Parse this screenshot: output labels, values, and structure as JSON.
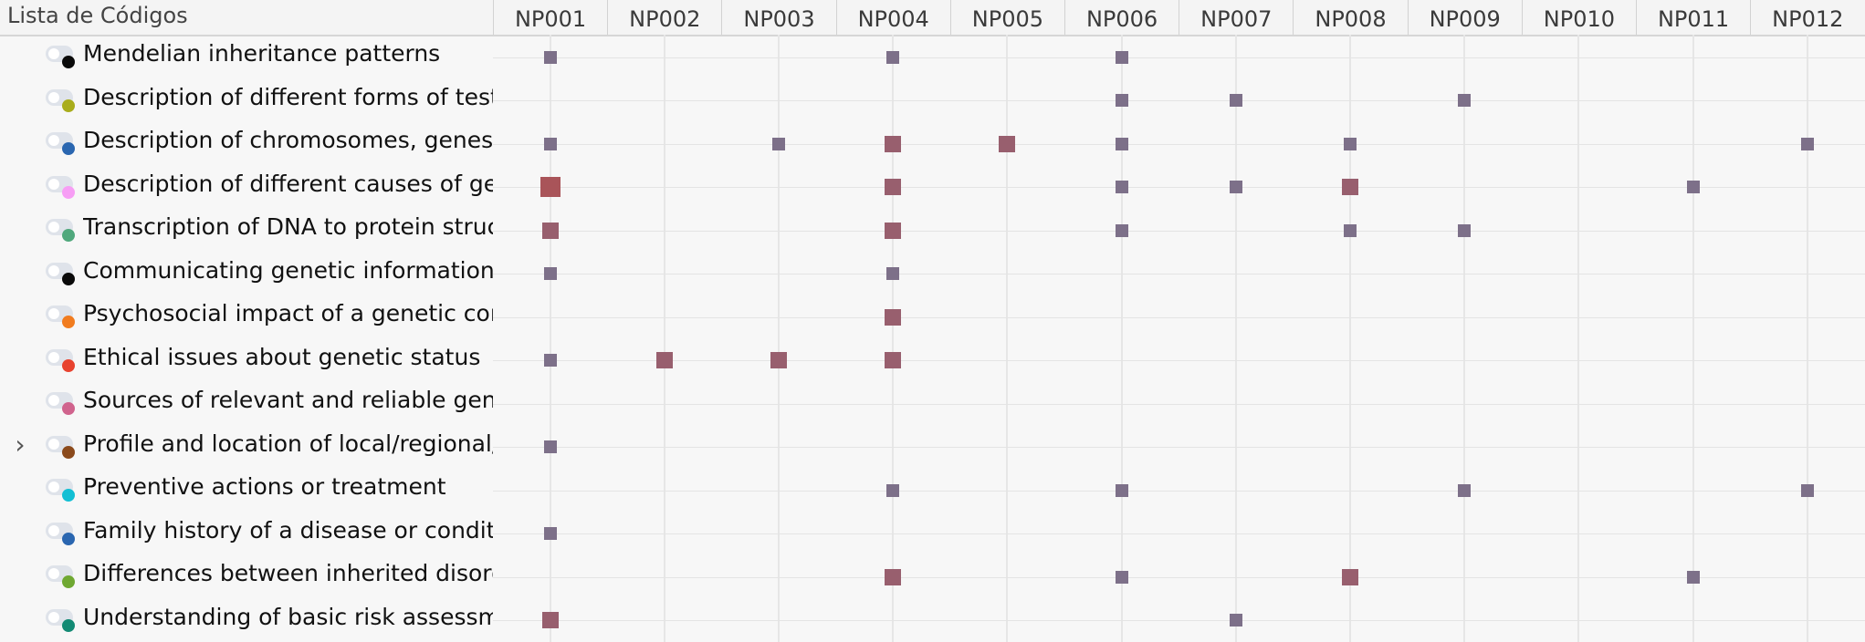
{
  "header": {
    "title": "Lista de Códigos",
    "columns": [
      "NP001",
      "NP002",
      "NP003",
      "NP004",
      "NP005",
      "NP006",
      "NP007",
      "NP008",
      "NP009",
      "NP010",
      "NP011",
      "NP012"
    ]
  },
  "rows": [
    {
      "label": "Mendelian inheritance patterns",
      "color": "#0a0a0a",
      "expandable": false,
      "markers": [
        {
          "col": 0,
          "size": "small"
        },
        {
          "col": 3,
          "size": "small"
        },
        {
          "col": 5,
          "size": "small"
        }
      ]
    },
    {
      "label": "Description of different forms of testing",
      "color": "#a9ad1c",
      "expandable": false,
      "markers": [
        {
          "col": 5,
          "size": "small"
        },
        {
          "col": 6,
          "size": "small"
        },
        {
          "col": 8,
          "size": "small"
        }
      ]
    },
    {
      "label": "Description of chromosomes, genes and",
      "color": "#2a66b0",
      "expandable": false,
      "markers": [
        {
          "col": 0,
          "size": "small"
        },
        {
          "col": 2,
          "size": "small"
        },
        {
          "col": 3,
          "size": "medium"
        },
        {
          "col": 4,
          "size": "medium"
        },
        {
          "col": 5,
          "size": "small"
        },
        {
          "col": 7,
          "size": "small"
        },
        {
          "col": 11,
          "size": "small"
        }
      ]
    },
    {
      "label": "Description of different causes of genet",
      "color": "#f79ef5",
      "expandable": false,
      "markers": [
        {
          "col": 0,
          "size": "large"
        },
        {
          "col": 3,
          "size": "medium"
        },
        {
          "col": 5,
          "size": "small"
        },
        {
          "col": 6,
          "size": "small"
        },
        {
          "col": 7,
          "size": "medium"
        },
        {
          "col": 10,
          "size": "small"
        }
      ]
    },
    {
      "label": "Transcription of DNA to protein structur",
      "color": "#4fa87c",
      "expandable": false,
      "markers": [
        {
          "col": 0,
          "size": "medium"
        },
        {
          "col": 3,
          "size": "medium"
        },
        {
          "col": 5,
          "size": "small"
        },
        {
          "col": 7,
          "size": "small"
        },
        {
          "col": 8,
          "size": "small"
        }
      ]
    },
    {
      "label": "Communicating genetic information to",
      "color": "#0a0a0a",
      "expandable": false,
      "markers": [
        {
          "col": 0,
          "size": "small"
        },
        {
          "col": 3,
          "size": "small"
        }
      ]
    },
    {
      "label": "Psychosocial impact of a genetic condit",
      "color": "#f17c1f",
      "expandable": false,
      "markers": [
        {
          "col": 3,
          "size": "medium"
        }
      ]
    },
    {
      "label": "Ethical issues about genetic status",
      "color": "#e8432f",
      "expandable": false,
      "markers": [
        {
          "col": 0,
          "size": "small"
        },
        {
          "col": 1,
          "size": "medium"
        },
        {
          "col": 2,
          "size": "medium"
        },
        {
          "col": 3,
          "size": "medium"
        }
      ]
    },
    {
      "label": "Sources of relevant and reliable genetic",
      "color": "#d0638d",
      "expandable": false,
      "markers": []
    },
    {
      "label": "Profile and location of local/regional/na",
      "color": "#8b4a1c",
      "expandable": true,
      "markers": [
        {
          "col": 0,
          "size": "small"
        }
      ]
    },
    {
      "label": "Preventive actions or treatment",
      "color": "#12bfd4",
      "expandable": false,
      "markers": [
        {
          "col": 3,
          "size": "small"
        },
        {
          "col": 5,
          "size": "small"
        },
        {
          "col": 8,
          "size": "small"
        },
        {
          "col": 11,
          "size": "small"
        }
      ]
    },
    {
      "label": "Family history of a disease or condition",
      "color": "#2a66b0",
      "expandable": false,
      "markers": [
        {
          "col": 0,
          "size": "small"
        }
      ]
    },
    {
      "label": "Differences between inherited disorder a",
      "color": "#6fa832",
      "expandable": false,
      "markers": [
        {
          "col": 3,
          "size": "medium"
        },
        {
          "col": 5,
          "size": "small"
        },
        {
          "col": 7,
          "size": "medium"
        },
        {
          "col": 10,
          "size": "small"
        }
      ]
    },
    {
      "label": "Understanding of basic risk assessment",
      "color": "#138a74",
      "expandable": false,
      "markers": [
        {
          "col": 0,
          "size": "medium"
        },
        {
          "col": 6,
          "size": "small"
        }
      ]
    }
  ]
}
